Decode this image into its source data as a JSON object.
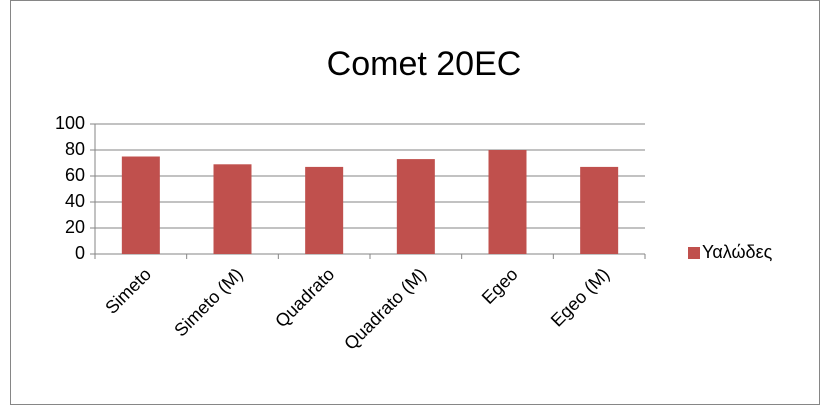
{
  "chart_data": {
    "type": "bar",
    "title": "Comet 20EC",
    "categories": [
      "Simeto",
      "Simeto (M)",
      "Quadrato",
      "Quadrato (M)",
      "Egeo",
      "Egeo (M)"
    ],
    "series": [
      {
        "name": "Υαλώδες",
        "color": "#c0504d",
        "values": [
          75,
          69,
          67,
          73,
          80,
          67
        ]
      }
    ],
    "ylim": [
      0,
      100
    ],
    "yticks": [
      0,
      20,
      40,
      60,
      80,
      100
    ],
    "grid": true,
    "legend": "right"
  }
}
